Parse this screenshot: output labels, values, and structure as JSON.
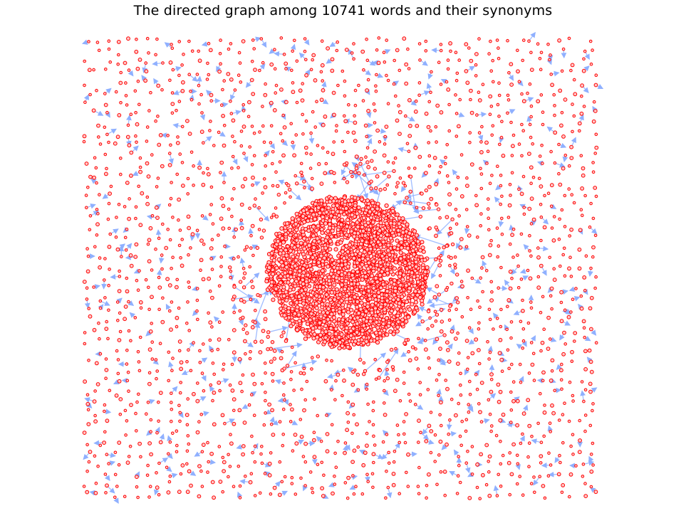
{
  "figure": {
    "title": "The directed graph among 10741 words and their synonyms"
  },
  "graph": {
    "type": "directed-network",
    "layout": "force-directed",
    "node_style": {
      "fill": "#ffc8c8",
      "stroke": "#ff0000"
    },
    "edge_style": {
      "color": "#8fb0ff"
    },
    "dense_core": "central cluster of highly connected synonym nodes",
    "periphery": "sparse scattered nodes and short directed edges surrounding the core"
  }
}
